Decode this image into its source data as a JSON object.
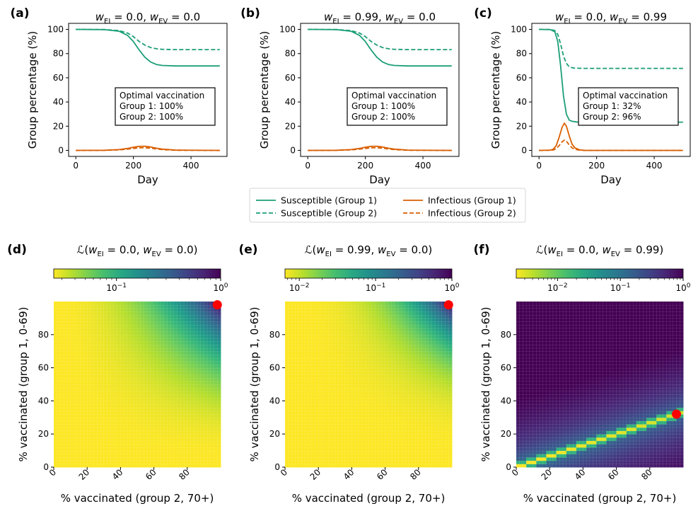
{
  "figure": {
    "legend": [
      {
        "label": "Susceptible (Group 1)",
        "color": "#1b9e77",
        "dash": false
      },
      {
        "label": "Susceptible (Group 2)",
        "color": "#1b9e77",
        "dash": true
      },
      {
        "label": "Infectious (Group 1)",
        "color": "#d95f02",
        "dash": false
      },
      {
        "label": "Infectious (Group 2)",
        "color": "#d95f02",
        "dash": true
      }
    ]
  },
  "chart_data": [
    {
      "panel": "(a)",
      "type": "line",
      "title": "w_EI = 0.0, w_EV = 0.0",
      "title_parts": {
        "a": "0.0",
        "b": "0.0"
      },
      "xlabel": "Day",
      "ylabel": "Group percentage (%)",
      "xlim": [
        -25,
        525
      ],
      "ylim": [
        -5,
        105
      ],
      "xticks": [
        0,
        200,
        400
      ],
      "yticks": [
        0,
        20,
        40,
        60,
        80,
        100
      ],
      "annotation": [
        "Optimal vaccination",
        "Group 1: 100%",
        "Group 2: 100%"
      ],
      "series": [
        {
          "name": "Susceptible (Group 1)",
          "x": [
            0,
            100,
            150,
            180,
            200,
            220,
            240,
            260,
            280,
            300,
            350,
            400,
            500
          ],
          "y": [
            100,
            99.8,
            98.5,
            95,
            90,
            83,
            77,
            73,
            71,
            70.2,
            69.8,
            69.8,
            69.8
          ]
        },
        {
          "name": "Susceptible (Group 2)",
          "x": [
            0,
            100,
            150,
            180,
            200,
            220,
            240,
            260,
            280,
            300,
            350,
            400,
            500
          ],
          "y": [
            100,
            99.9,
            99,
            97,
            94,
            90,
            87,
            85,
            84,
            83.5,
            83.3,
            83.3,
            83.3
          ]
        },
        {
          "name": "Infectious (Group 1)",
          "x": [
            0,
            100,
            150,
            180,
            200,
            220,
            240,
            260,
            280,
            300,
            350,
            500
          ],
          "y": [
            0,
            0.1,
            0.6,
            1.6,
            2.6,
            3.3,
            3.4,
            2.8,
            1.8,
            1,
            0.2,
            0
          ]
        },
        {
          "name": "Infectious (Group 2)",
          "x": [
            0,
            100,
            150,
            180,
            200,
            220,
            240,
            260,
            280,
            300,
            350,
            500
          ],
          "y": [
            0,
            0.05,
            0.4,
            1,
            1.6,
            2.1,
            2.2,
            1.8,
            1.2,
            0.6,
            0.1,
            0
          ]
        }
      ]
    },
    {
      "panel": "(b)",
      "type": "line",
      "title": "w_EI = 0.99, w_EV = 0.0",
      "title_parts": {
        "a": "0.99",
        "b": "0.0"
      },
      "xlabel": "Day",
      "ylabel": "Group percentage (%)",
      "xlim": [
        -25,
        525
      ],
      "ylim": [
        -5,
        105
      ],
      "xticks": [
        0,
        200,
        400
      ],
      "yticks": [
        0,
        20,
        40,
        60,
        80,
        100
      ],
      "annotation": [
        "Optimal vaccination",
        "Group 1: 100%",
        "Group 2: 100%"
      ],
      "series": [
        {
          "name": "Susceptible (Group 1)",
          "x": [
            0,
            100,
            150,
            180,
            200,
            220,
            240,
            260,
            280,
            300,
            350,
            400,
            500
          ],
          "y": [
            100,
            99.8,
            98.5,
            95,
            90,
            83,
            77,
            73,
            71,
            70.2,
            69.8,
            69.8,
            69.8
          ]
        },
        {
          "name": "Susceptible (Group 2)",
          "x": [
            0,
            100,
            150,
            180,
            200,
            220,
            240,
            260,
            280,
            300,
            350,
            400,
            500
          ],
          "y": [
            100,
            99.9,
            99,
            97,
            94,
            90,
            87,
            85,
            84,
            83.5,
            83.3,
            83.3,
            83.3
          ]
        },
        {
          "name": "Infectious (Group 1)",
          "x": [
            0,
            100,
            150,
            180,
            200,
            220,
            240,
            260,
            280,
            300,
            350,
            500
          ],
          "y": [
            0,
            0.1,
            0.6,
            1.6,
            2.6,
            3.3,
            3.4,
            2.8,
            1.8,
            1,
            0.2,
            0
          ]
        },
        {
          "name": "Infectious (Group 2)",
          "x": [
            0,
            100,
            150,
            180,
            200,
            220,
            240,
            260,
            280,
            300,
            350,
            500
          ],
          "y": [
            0,
            0.05,
            0.4,
            1,
            1.6,
            2.1,
            2.2,
            1.8,
            1.2,
            0.6,
            0.1,
            0
          ]
        }
      ]
    },
    {
      "panel": "(c)",
      "type": "line",
      "title": "w_EI = 0.0, w_EV = 0.99",
      "title_parts": {
        "a": "0.0",
        "b": "0.99"
      },
      "xlabel": "Day",
      "ylabel": "Group percentage (%)",
      "xlim": [
        -25,
        525
      ],
      "ylim": [
        -5,
        105
      ],
      "xticks": [
        0,
        200,
        400
      ],
      "yticks": [
        0,
        20,
        40,
        60,
        80,
        100
      ],
      "annotation": [
        "Optimal vaccination",
        "Group 1: 32%",
        "Group 2: 96%"
      ],
      "series": [
        {
          "name": "Susceptible (Group 1)",
          "x": [
            0,
            40,
            55,
            65,
            75,
            85,
            95,
            105,
            115,
            130,
            150,
            200,
            300,
            500
          ],
          "y": [
            100,
            99.8,
            98,
            90,
            70,
            45,
            30,
            25,
            24,
            23.5,
            23.3,
            23.3,
            23.3,
            23.3
          ]
        },
        {
          "name": "Susceptible (Group 2)",
          "x": [
            0,
            40,
            55,
            65,
            75,
            85,
            95,
            105,
            120,
            150,
            200,
            500
          ],
          "y": [
            100,
            99.9,
            99,
            96,
            88,
            78,
            72,
            69,
            68,
            67.8,
            67.8,
            67.8
          ]
        },
        {
          "name": "Infectious (Group 1)",
          "x": [
            0,
            40,
            50,
            60,
            70,
            80,
            88,
            95,
            105,
            115,
            125,
            140,
            160,
            500
          ],
          "y": [
            0,
            0.2,
            1,
            4,
            11,
            19,
            22.5,
            20,
            12,
            5,
            2,
            0.5,
            0,
            0
          ]
        },
        {
          "name": "Infectious (Group 2)",
          "x": [
            0,
            40,
            50,
            60,
            70,
            80,
            88,
            95,
            105,
            115,
            125,
            140,
            160,
            500
          ],
          "y": [
            0,
            0.1,
            0.3,
            1.5,
            4,
            7,
            8.5,
            7.5,
            4.5,
            2,
            0.8,
            0.2,
            0,
            0
          ]
        }
      ]
    },
    {
      "panel": "(d)",
      "type": "heatmap",
      "title": "L(w_EI = 0.0, w_EV = 0.0)",
      "title_parts": {
        "a": "0.0",
        "b": "0.0"
      },
      "xlabel": "% vaccinated (group 2, 70+)",
      "ylabel": "% vaccinated (group 1, 0-69)",
      "xlim": [
        0,
        100
      ],
      "ylim": [
        0,
        100
      ],
      "xticks": [
        0,
        20,
        40,
        60,
        80
      ],
      "yticks": [
        0,
        20,
        40,
        60,
        80
      ],
      "colorbar": {
        "scale": "log",
        "min": 0.025,
        "max": 1,
        "ticks": [
          "10^-1",
          "10^0"
        ],
        "cmap": "viridis_r"
      },
      "optimum": {
        "x": 98,
        "y": 98
      }
    },
    {
      "panel": "(e)",
      "type": "heatmap",
      "title": "L(w_EI = 0.99, w_EV = 0.0)",
      "title_parts": {
        "a": "0.99",
        "b": "0.0"
      },
      "xlabel": "% vaccinated (group 2, 70+)",
      "ylabel": "% vaccinated (group 1, 0-69)",
      "xlim": [
        0,
        100
      ],
      "ylim": [
        0,
        100
      ],
      "xticks": [
        0,
        20,
        40,
        60,
        80
      ],
      "yticks": [
        0,
        20,
        40,
        60,
        80
      ],
      "colorbar": {
        "scale": "log",
        "min": 0.0065,
        "max": 1,
        "ticks": [
          "10^-2",
          "10^-1",
          "10^0"
        ],
        "cmap": "viridis_r"
      },
      "optimum": {
        "x": 98,
        "y": 98
      }
    },
    {
      "panel": "(f)",
      "type": "heatmap",
      "title": "L(w_EI = 0.0, w_EV = 0.99)",
      "title_parts": {
        "a": "0.0",
        "b": "0.99"
      },
      "xlabel": "% vaccinated (group 2, 70+)",
      "ylabel": "% vaccinated (group 1, 0-69)",
      "xlim": [
        0,
        100
      ],
      "ylim": [
        0,
        100
      ],
      "xticks": [
        0,
        20,
        40,
        60,
        80
      ],
      "yticks": [
        0,
        20,
        40,
        60,
        80
      ],
      "colorbar": {
        "scale": "log",
        "min": 0.0022,
        "max": 1,
        "ticks": [
          "10^-2",
          "10^-1",
          "10^0"
        ],
        "cmap": "viridis_r"
      },
      "optimum": {
        "x": 96,
        "y": 32
      }
    }
  ]
}
